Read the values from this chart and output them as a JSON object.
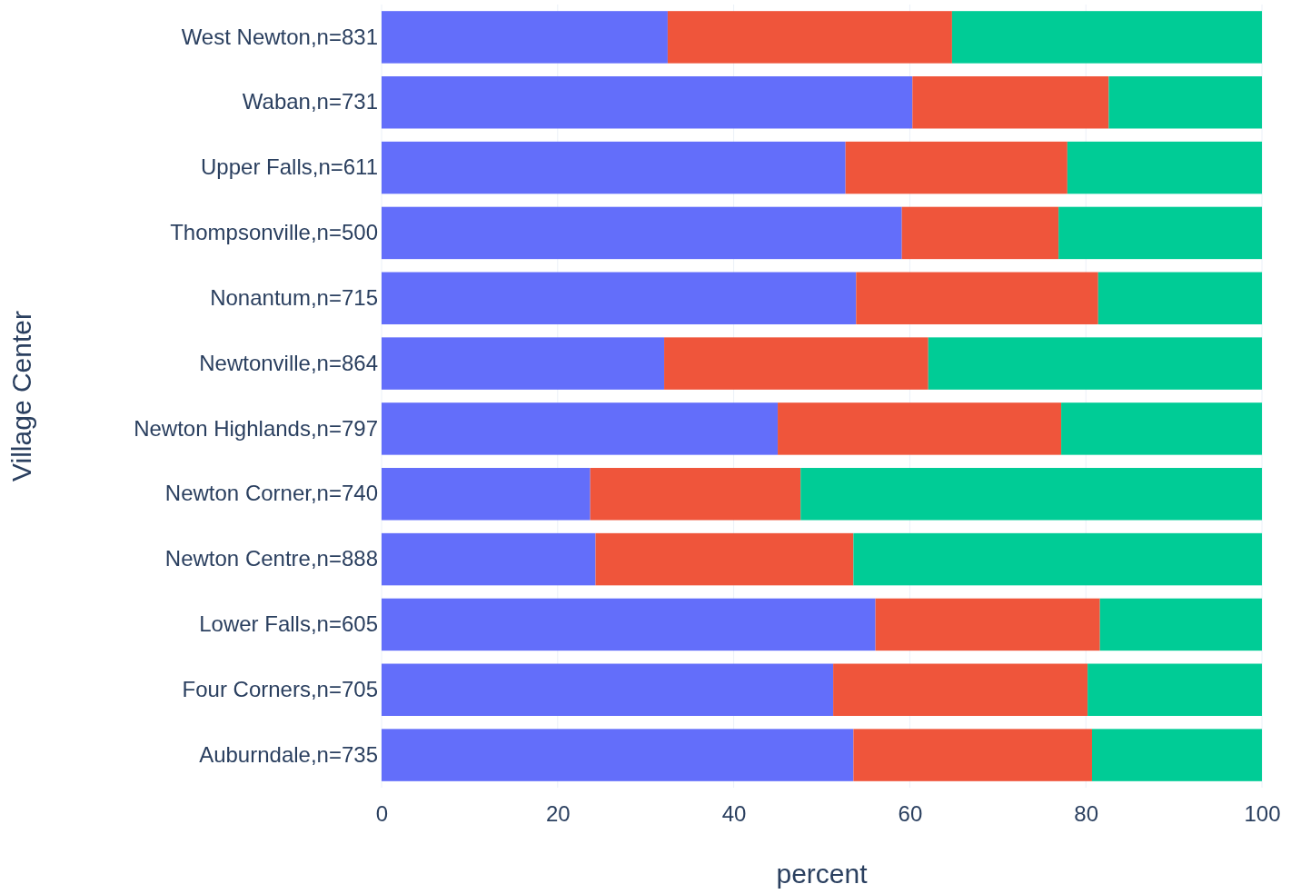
{
  "chart_data": {
    "type": "bar",
    "orientation": "horizontal",
    "stacked": true,
    "xlabel": "percent",
    "ylabel": "Village Center",
    "categories": [
      "West Newton,n=831",
      "Waban,n=731",
      "Upper Falls,n=611",
      "Thompsonville,n=500",
      "Nonantum,n=715",
      "Newtonville,n=864",
      "Newton Highlands,n=797",
      "Newton Corner,n=740",
      "Newton Centre,n=888",
      "Lower Falls,n=605",
      "Four Corners,n=705",
      "Auburndale,n=735"
    ],
    "series": [
      {
        "color": "#636efa",
        "values": [
          32.5,
          60.3,
          52.7,
          59.1,
          53.9,
          32.1,
          45.0,
          23.7,
          24.3,
          56.1,
          51.3,
          53.6
        ]
      },
      {
        "color": "#ef553b",
        "values": [
          32.3,
          22.3,
          25.2,
          17.8,
          27.5,
          30.0,
          32.2,
          23.9,
          29.3,
          25.5,
          28.9,
          27.1
        ]
      },
      {
        "color": "#00cc96",
        "values": [
          35.2,
          17.4,
          22.1,
          23.1,
          18.6,
          37.9,
          22.8,
          52.4,
          46.4,
          18.4,
          19.8,
          19.3
        ]
      }
    ],
    "xlim": [
      0,
      100
    ],
    "xticks": [
      0,
      20,
      40,
      60,
      80,
      100
    ],
    "grid": "x"
  }
}
